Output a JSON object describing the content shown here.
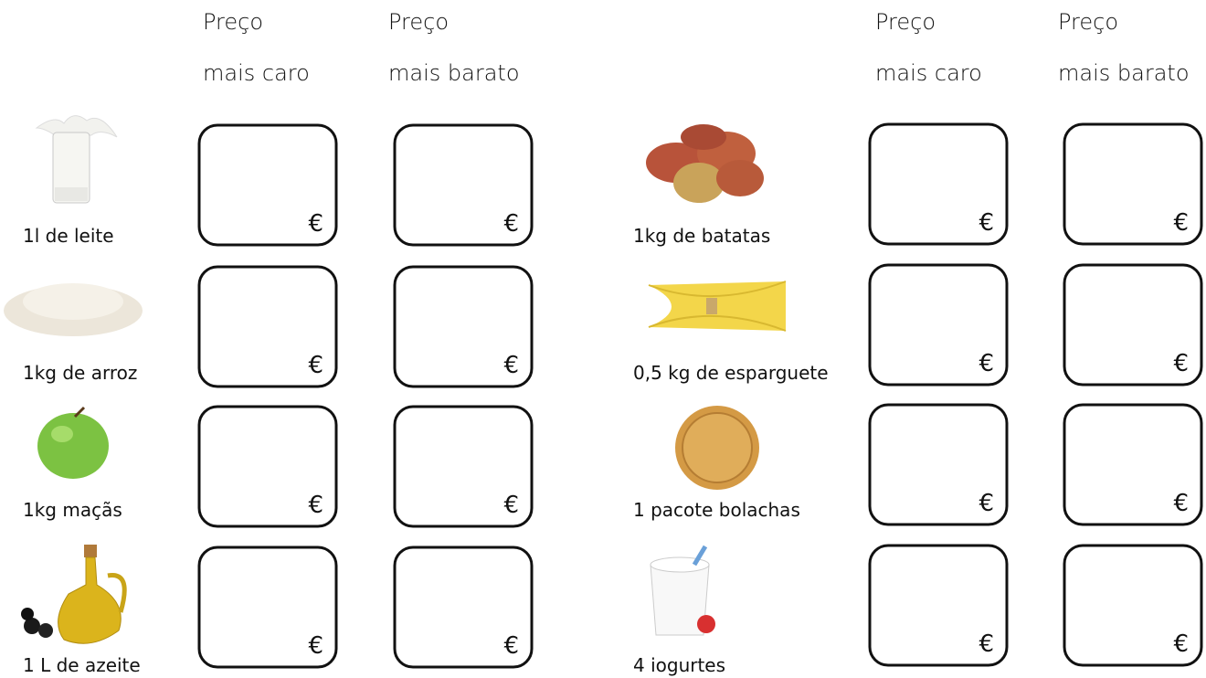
{
  "currency": "€",
  "left": {
    "headers": [
      {
        "line1": "Preço",
        "line2": "mais caro"
      },
      {
        "line1": "Preço",
        "line2": "mais barato"
      }
    ],
    "items": [
      "1l de leite",
      "1kg de arroz",
      "1kg maçãs",
      "1 L de azeite"
    ]
  },
  "right": {
    "headers": [
      {
        "line1": "Preço",
        "line2": "mais caro"
      },
      {
        "line1": "Preço",
        "line2": "mais barato"
      }
    ],
    "items": [
      "1kg de batatas",
      "0,5 kg de esparguete",
      "1 pacote bolachas",
      "4 iogurtes"
    ]
  }
}
